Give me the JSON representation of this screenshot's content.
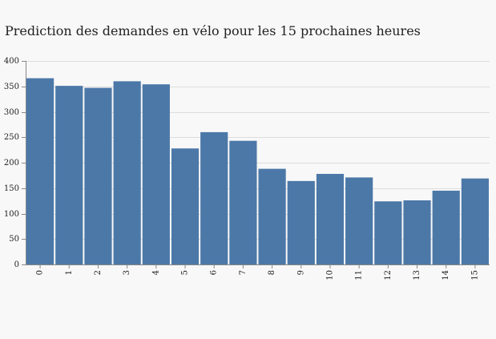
{
  "chart_data": {
    "type": "bar",
    "title": "Prediction des demandes en vélo pour les 15 prochaines heures",
    "xlabel": "",
    "ylabel": "",
    "categories": [
      "0",
      "1",
      "2",
      "3",
      "4",
      "5",
      "6",
      "7",
      "8",
      "9",
      "10",
      "11",
      "12",
      "13",
      "14",
      "15"
    ],
    "values": [
      366,
      351,
      347,
      360,
      354,
      228,
      260,
      243,
      188,
      164,
      178,
      171,
      124,
      126,
      145,
      169
    ],
    "ylim": [
      0,
      400
    ],
    "yticks": [
      0,
      50,
      100,
      150,
      200,
      250,
      300,
      350,
      400
    ],
    "grid": true,
    "bar_color": "#4c78a8",
    "grid_color": "#dddddd",
    "axis_color": "#888888"
  }
}
